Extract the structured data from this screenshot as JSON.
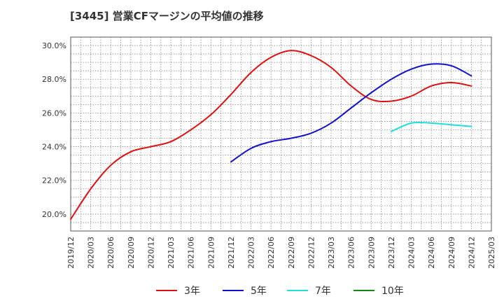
{
  "chart_data": {
    "type": "line",
    "title": "[3445]  営業CFマージンの平均値の推移",
    "xlabel": "",
    "ylabel": "",
    "x_ticks": [
      "2019/12",
      "2020/03",
      "2020/06",
      "2020/09",
      "2020/12",
      "2021/03",
      "2021/06",
      "2021/09",
      "2021/12",
      "2022/03",
      "2022/06",
      "2022/09",
      "2022/12",
      "2023/03",
      "2023/06",
      "2023/09",
      "2023/12",
      "2024/03",
      "2024/06",
      "2024/09",
      "2024/12",
      "2025/03"
    ],
    "y_ticks": [
      "20.0%",
      "22.0%",
      "24.0%",
      "26.0%",
      "28.0%",
      "30.0%"
    ],
    "y_tick_values": [
      20,
      22,
      24,
      26,
      28,
      30
    ],
    "ylim": [
      19.0,
      30.5
    ],
    "grid": true,
    "legend_position": "bottom",
    "series": [
      {
        "name": "3年",
        "color": "#dd1111",
        "x": [
          "2019/12",
          "2020/03",
          "2020/06",
          "2020/09",
          "2020/12",
          "2021/03",
          "2021/06",
          "2021/09",
          "2021/12",
          "2022/03",
          "2022/06",
          "2022/09",
          "2022/12",
          "2023/03",
          "2023/06",
          "2023/09",
          "2023/12",
          "2024/03",
          "2024/06",
          "2024/09",
          "2024/12"
        ],
        "values": [
          19.7,
          21.5,
          22.9,
          23.7,
          24.0,
          24.3,
          25.0,
          25.9,
          27.1,
          28.4,
          29.3,
          29.7,
          29.4,
          28.7,
          27.6,
          26.8,
          26.7,
          27.0,
          27.6,
          27.8,
          27.6
        ]
      },
      {
        "name": "5年",
        "color": "#1111cc",
        "x": [
          "2021/12",
          "2022/03",
          "2022/06",
          "2022/09",
          "2022/12",
          "2023/03",
          "2023/06",
          "2023/09",
          "2023/12",
          "2024/03",
          "2024/06",
          "2024/09",
          "2024/12"
        ],
        "values": [
          23.1,
          23.9,
          24.3,
          24.5,
          24.8,
          25.4,
          26.3,
          27.2,
          28.0,
          28.6,
          28.9,
          28.8,
          28.2
        ]
      },
      {
        "name": "7年",
        "color": "#22dddd",
        "x": [
          "2023/12",
          "2024/03",
          "2024/06",
          "2024/09",
          "2024/12"
        ],
        "values": [
          24.9,
          25.4,
          25.4,
          25.3,
          25.2
        ]
      },
      {
        "name": "10年",
        "color": "#118811",
        "x": [],
        "values": []
      }
    ]
  }
}
